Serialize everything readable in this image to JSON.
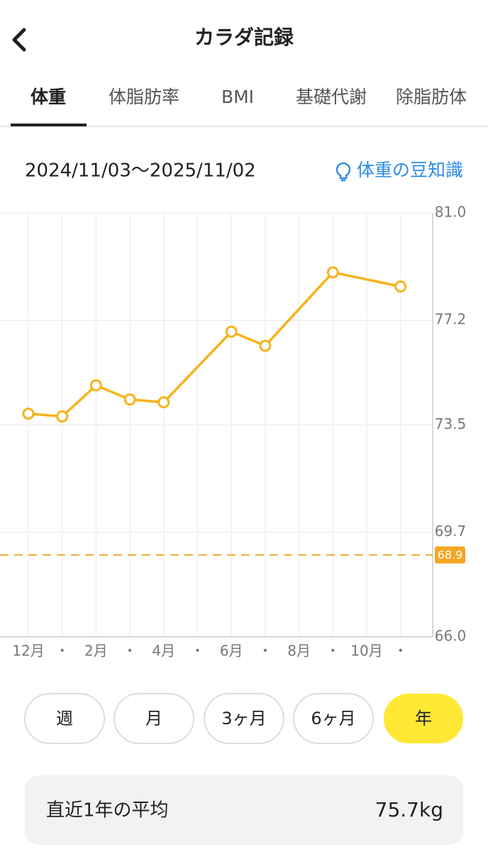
{
  "header": {
    "title": "カラダ記録"
  },
  "tabs": {
    "items": [
      "体重",
      "体脂肪率",
      "BMI",
      "基礎代謝",
      "除脂肪体"
    ],
    "selected": 0
  },
  "date_range": "2024/11/03〜2025/11/02",
  "tip": "体重の豆知識",
  "chart_data": {
    "type": "line",
    "categories": [
      "12月",
      "・",
      "2月",
      "・",
      "4月",
      "・",
      "6月",
      "・",
      "8月",
      "・",
      "10月",
      "・"
    ],
    "values": [
      73.9,
      73.8,
      74.9,
      74.4,
      74.3,
      null,
      76.8,
      76.3,
      null,
      78.9,
      null,
      78.4
    ],
    "color": "#f7b21b",
    "connect_gaps": true,
    "ylim": [
      66,
      81
    ],
    "yticks": [
      {
        "value": 81,
        "label": "81.0"
      },
      77.2,
      73.5,
      69.7,
      {
        "value": 66,
        "label": "66.0"
      }
    ],
    "grid": true,
    "y_axis_side": "right",
    "reference_line": {
      "value": 68.9,
      "color": "#f5a623",
      "dashed": true
    }
  },
  "periods": {
    "items": [
      "週",
      "月",
      "3ヶ月",
      "6ヶ月",
      "年"
    ],
    "selected": 4
  },
  "summary": {
    "label": "直近1年の平均",
    "value": "75.7kg"
  }
}
